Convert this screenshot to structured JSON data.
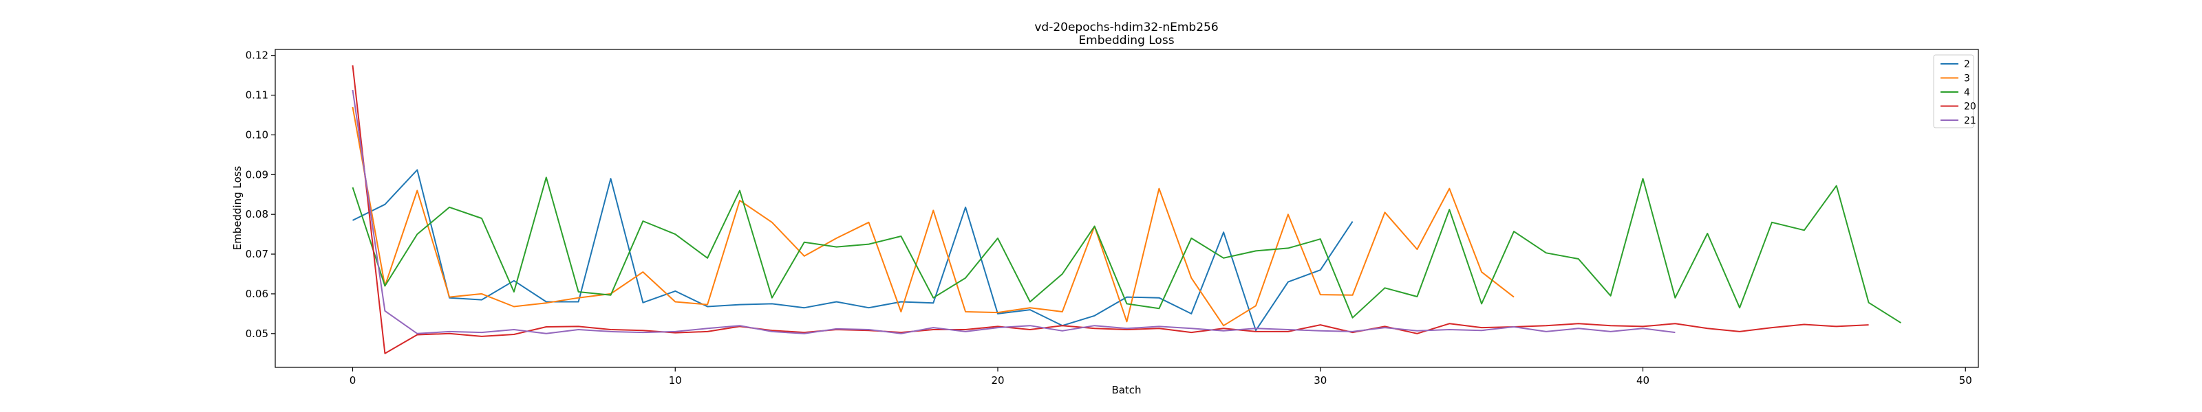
{
  "chart_data": {
    "type": "line",
    "title": "vd-20epochs-hdim32-nEmb256",
    "subtitle": "Embedding Loss",
    "xlabel": "Batch",
    "ylabel": "Embedding Loss",
    "xlim": [
      -2.4,
      50.4
    ],
    "ylim": [
      0.0415,
      0.1215
    ],
    "xticks": [
      0,
      10,
      20,
      30,
      40,
      50
    ],
    "yticks": [
      0.05,
      0.06,
      0.07,
      0.08,
      0.09,
      0.1,
      0.11,
      0.12
    ],
    "ytick_labels": [
      "0.05",
      "0.06",
      "0.07",
      "0.08",
      "0.09",
      "0.10",
      "0.11",
      "0.12"
    ],
    "grid": false,
    "legend_position": "top-right",
    "series": [
      {
        "name": "2",
        "color": "#1f77b4",
        "values": [
          0.0785,
          0.0825,
          0.0912,
          0.059,
          0.0585,
          0.0633,
          0.058,
          0.058,
          0.089,
          0.0578,
          0.0607,
          0.0568,
          0.0573,
          0.0575,
          0.0565,
          0.058,
          0.0565,
          0.058,
          0.0577,
          0.0818,
          0.055,
          0.056,
          0.052,
          0.0545,
          0.0592,
          0.059,
          0.055,
          0.0755,
          0.0508,
          0.063,
          0.066,
          0.0782
        ]
      },
      {
        "name": "3",
        "color": "#ff7f0e",
        "values": [
          0.107,
          0.062,
          0.086,
          0.0592,
          0.06,
          0.0568,
          0.0577,
          0.059,
          0.06,
          0.0655,
          0.058,
          0.0573,
          0.0835,
          0.078,
          0.0695,
          0.074,
          0.078,
          0.0555,
          0.081,
          0.0555,
          0.0553,
          0.0565,
          0.0555,
          0.077,
          0.053,
          0.0865,
          0.064,
          0.052,
          0.057,
          0.08,
          0.0598,
          0.0597,
          0.0805,
          0.0712,
          0.0865,
          0.0655,
          0.0592
        ]
      },
      {
        "name": "4",
        "color": "#2ca02c",
        "values": [
          0.0868,
          0.062,
          0.075,
          0.0818,
          0.079,
          0.0605,
          0.0893,
          0.0605,
          0.0597,
          0.0783,
          0.075,
          0.069,
          0.086,
          0.059,
          0.073,
          0.0718,
          0.0725,
          0.0745,
          0.059,
          0.064,
          0.074,
          0.058,
          0.065,
          0.077,
          0.0575,
          0.0563,
          0.074,
          0.069,
          0.0708,
          0.0715,
          0.0738,
          0.054,
          0.0615,
          0.0593,
          0.0812,
          0.0575,
          0.0757,
          0.0703,
          0.0688,
          0.0595,
          0.089,
          0.059,
          0.0752,
          0.0565,
          0.078,
          0.076,
          0.0872,
          0.0578,
          0.0527
        ]
      },
      {
        "name": "20",
        "color": "#d62728",
        "values": [
          0.1175,
          0.045,
          0.0497,
          0.05,
          0.0493,
          0.0498,
          0.0517,
          0.0518,
          0.051,
          0.0508,
          0.0502,
          0.0505,
          0.0518,
          0.0508,
          0.0503,
          0.051,
          0.0508,
          0.0503,
          0.051,
          0.051,
          0.0518,
          0.051,
          0.052,
          0.0513,
          0.051,
          0.0513,
          0.0503,
          0.0513,
          0.0505,
          0.0505,
          0.0522,
          0.0503,
          0.0518,
          0.05,
          0.0525,
          0.0515,
          0.0517,
          0.052,
          0.0525,
          0.052,
          0.0518,
          0.0525,
          0.0513,
          0.0505,
          0.0515,
          0.0523,
          0.0518,
          0.0522
        ]
      },
      {
        "name": "21",
        "color": "#9467bd",
        "values": [
          0.1113,
          0.0557,
          0.05,
          0.0505,
          0.0503,
          0.051,
          0.05,
          0.051,
          0.0505,
          0.0503,
          0.0505,
          0.0513,
          0.052,
          0.0505,
          0.05,
          0.0512,
          0.051,
          0.05,
          0.0515,
          0.0505,
          0.0515,
          0.052,
          0.0507,
          0.052,
          0.0513,
          0.0518,
          0.0513,
          0.0507,
          0.0513,
          0.051,
          0.0507,
          0.0505,
          0.0515,
          0.0507,
          0.051,
          0.0508,
          0.0517,
          0.0505,
          0.0513,
          0.0505,
          0.0513,
          0.0503
        ]
      }
    ]
  }
}
